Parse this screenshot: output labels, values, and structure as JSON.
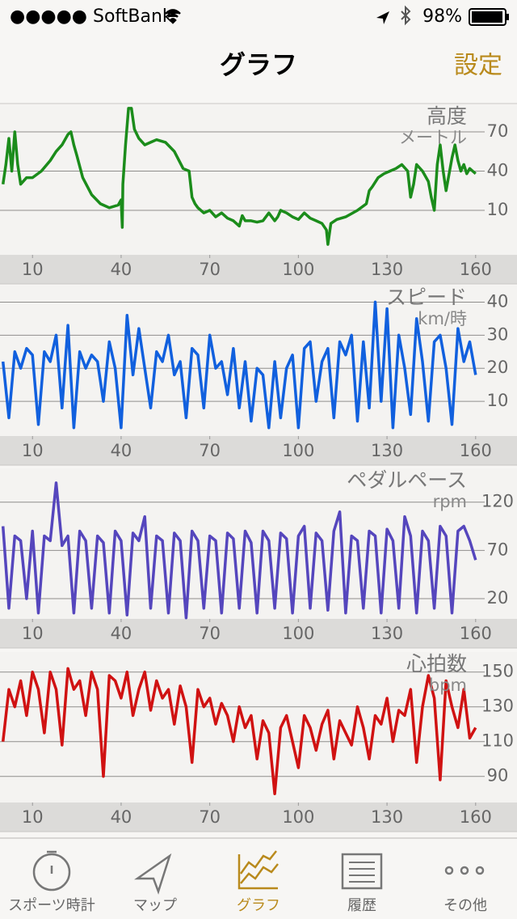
{
  "status_bar": {
    "carrier": "●●●●● SoftBank",
    "battery": "98%"
  },
  "nav": {
    "title": "グラフ",
    "right_button": "設定"
  },
  "chart_data": [
    {
      "type": "line",
      "title": "高度",
      "subtitle": "メートル",
      "x": [
        0,
        1,
        2,
        3,
        4,
        5,
        6,
        8,
        10,
        13,
        16,
        18,
        20,
        22,
        23,
        24,
        25,
        27,
        30,
        33,
        36,
        39,
        40,
        40.4,
        40.6,
        41.5,
        42.5,
        43.5,
        44.5,
        46,
        48,
        50,
        52,
        55,
        58,
        61,
        63,
        64,
        65,
        66,
        68,
        70,
        72,
        74,
        76,
        78,
        80,
        81,
        82,
        84,
        86,
        88,
        90,
        92,
        93,
        94,
        96,
        98,
        100,
        102,
        104,
        106,
        108,
        109.5,
        110,
        111,
        113,
        116,
        120,
        123,
        124,
        125,
        127,
        129,
        131,
        133,
        135,
        137,
        138,
        139,
        140,
        142,
        144,
        145,
        146,
        147,
        148,
        149,
        150,
        152,
        153,
        154,
        155,
        156,
        157,
        158,
        159,
        160
      ],
      "series": [
        {
          "color": "#1b8c1b",
          "values": [
            30,
            45,
            65,
            40,
            70,
            45,
            30,
            35,
            35,
            40,
            48,
            55,
            60,
            68,
            70,
            60,
            52,
            35,
            22,
            15,
            12,
            14,
            18,
            -3,
            30,
            60,
            88,
            88,
            72,
            65,
            60,
            62,
            64,
            62,
            55,
            42,
            40,
            20,
            15,
            12,
            8,
            10,
            5,
            8,
            4,
            2,
            -2,
            6,
            2,
            2,
            1,
            2,
            8,
            2,
            5,
            10,
            8,
            5,
            3,
            8,
            4,
            2,
            0,
            -5,
            -16,
            0,
            3,
            5,
            10,
            15,
            25,
            28,
            35,
            38,
            40,
            42,
            45,
            40,
            20,
            30,
            45,
            40,
            32,
            20,
            10,
            45,
            60,
            40,
            25,
            50,
            60,
            48,
            40,
            45,
            38,
            42,
            40,
            38
          ]
        }
      ],
      "xlim": [
        -1,
        174
      ],
      "ylim": [
        -24,
        91
      ],
      "xticks": [
        10,
        40,
        70,
        100,
        130,
        160
      ],
      "yticks": [
        10,
        40,
        70
      ]
    },
    {
      "type": "line",
      "title": "スピード",
      "subtitle": "km/時",
      "x": [
        0,
        2,
        4,
        6,
        8,
        10,
        12,
        14,
        16,
        18,
        20,
        22,
        24,
        26,
        28,
        30,
        32,
        34,
        36,
        38,
        40,
        42,
        44,
        46,
        48,
        50,
        52,
        54,
        56,
        58,
        60,
        62,
        64,
        66,
        68,
        70,
        72,
        74,
        76,
        78,
        80,
        82,
        84,
        86,
        88,
        90,
        92,
        94,
        96,
        98,
        100,
        102,
        104,
        106,
        108,
        110,
        112,
        114,
        116,
        118,
        120,
        122,
        124,
        126,
        128,
        130,
        132,
        134,
        136,
        138,
        140,
        142,
        144,
        146,
        148,
        150,
        152,
        154,
        156,
        158,
        160
      ],
      "series": [
        {
          "color": "#1160de",
          "values": [
            22,
            5,
            25,
            20,
            26,
            24,
            3,
            25,
            22,
            30,
            8,
            33,
            2,
            25,
            20,
            24,
            22,
            10,
            28,
            20,
            2,
            36,
            18,
            32,
            20,
            8,
            25,
            22,
            30,
            18,
            22,
            5,
            26,
            24,
            8,
            30,
            20,
            22,
            12,
            26,
            8,
            22,
            4,
            20,
            18,
            2,
            22,
            5,
            20,
            24,
            2,
            26,
            28,
            10,
            22,
            26,
            5,
            28,
            24,
            30,
            4,
            28,
            8,
            40,
            10,
            38,
            2,
            30,
            20,
            6,
            35,
            22,
            4,
            28,
            30,
            20,
            3,
            32,
            22,
            28,
            18
          ]
        }
      ],
      "xlim": [
        -1,
        174
      ],
      "ylim": [
        -0.5,
        45
      ],
      "xticks": [
        10,
        40,
        70,
        100,
        130,
        160
      ],
      "yticks": [
        10,
        20,
        30,
        40
      ]
    },
    {
      "type": "line",
      "title": "ペダルペース",
      "subtitle": "rpm",
      "x": [
        0,
        2,
        4,
        6,
        8,
        10,
        12,
        14,
        16,
        18,
        20,
        22,
        24,
        26,
        28,
        30,
        32,
        34,
        36,
        38,
        40,
        42,
        44,
        46,
        48,
        50,
        52,
        54,
        56,
        58,
        60,
        62,
        64,
        66,
        68,
        70,
        72,
        74,
        76,
        78,
        80,
        82,
        84,
        86,
        88,
        90,
        92,
        94,
        96,
        98,
        100,
        102,
        104,
        106,
        108,
        110,
        112,
        114,
        116,
        118,
        120,
        122,
        124,
        126,
        128,
        130,
        132,
        134,
        136,
        138,
        140,
        142,
        144,
        146,
        148,
        150,
        152,
        154,
        156,
        158,
        160
      ],
      "series": [
        {
          "color": "#5546bd",
          "values": [
            95,
            10,
            85,
            80,
            20,
            90,
            5,
            85,
            80,
            140,
            75,
            85,
            5,
            90,
            80,
            10,
            85,
            78,
            5,
            90,
            80,
            3,
            88,
            80,
            105,
            10,
            85,
            80,
            5,
            88,
            80,
            0,
            90,
            80,
            10,
            85,
            80,
            5,
            88,
            82,
            10,
            90,
            78,
            5,
            90,
            80,
            10,
            88,
            82,
            5,
            85,
            95,
            10,
            88,
            80,
            8,
            90,
            110,
            5,
            85,
            80,
            10,
            90,
            85,
            5,
            92,
            80,
            10,
            105,
            85,
            5,
            90,
            80,
            10,
            95,
            85,
            5,
            90,
            95,
            80,
            60
          ]
        }
      ],
      "xlim": [
        -1,
        174
      ],
      "ylim": [
        -1,
        155
      ],
      "xticks": [
        10,
        40,
        70,
        100,
        130,
        160
      ],
      "yticks": [
        20,
        70,
        120
      ]
    },
    {
      "type": "line",
      "title": "心拍数",
      "subtitle": "bpm",
      "x": [
        0,
        2,
        4,
        6,
        8,
        10,
        12,
        14,
        16,
        18,
        20,
        22,
        24,
        26,
        28,
        30,
        32,
        34,
        36,
        38,
        40,
        42,
        44,
        46,
        48,
        50,
        52,
        54,
        56,
        58,
        60,
        62,
        64,
        66,
        68,
        70,
        72,
        74,
        76,
        78,
        80,
        82,
        84,
        86,
        88,
        90,
        92,
        94,
        96,
        98,
        100,
        102,
        104,
        106,
        108,
        110,
        112,
        114,
        116,
        118,
        120,
        122,
        124,
        126,
        128,
        130,
        132,
        134,
        136,
        138,
        140,
        142,
        144,
        146,
        148,
        150,
        152,
        154,
        156,
        158,
        160
      ],
      "series": [
        {
          "color": "#d01212",
          "values": [
            110,
            140,
            130,
            145,
            125,
            150,
            140,
            115,
            150,
            140,
            108,
            152,
            140,
            145,
            125,
            150,
            140,
            90,
            148,
            145,
            135,
            150,
            125,
            140,
            150,
            128,
            145,
            135,
            140,
            120,
            142,
            130,
            98,
            140,
            130,
            135,
            120,
            132,
            125,
            110,
            130,
            118,
            125,
            100,
            122,
            115,
            80,
            118,
            125,
            110,
            95,
            125,
            118,
            105,
            120,
            128,
            100,
            122,
            115,
            108,
            130,
            118,
            100,
            125,
            120,
            135,
            110,
            128,
            125,
            140,
            98,
            130,
            148,
            135,
            88,
            145,
            130,
            118,
            140,
            112,
            118
          ]
        }
      ],
      "xlim": [
        -1,
        174
      ],
      "ylim": [
        75,
        161.5
      ],
      "xticks": [
        10,
        40,
        70,
        100,
        130,
        160
      ],
      "yticks": [
        90,
        110,
        130,
        150
      ]
    }
  ],
  "tab_bar": {
    "tabs": [
      "スポーツ時計",
      "マップ",
      "グラフ",
      "履歴",
      "その他"
    ],
    "active": 2
  }
}
